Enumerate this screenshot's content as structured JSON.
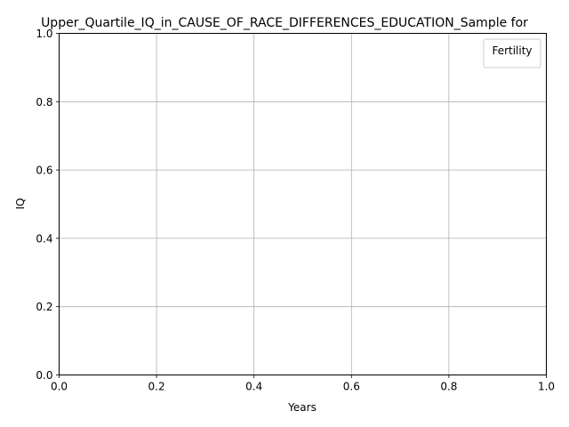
{
  "chart_data": {
    "type": "line",
    "title": "Upper_Quartile_IQ_in_CAUSE_OF_RACE_DIFFERENCES_EDUCATION_Sample for",
    "xlabel": "Years",
    "ylabel": "IQ",
    "xlim": [
      0.0,
      1.0
    ],
    "ylim": [
      0.0,
      1.0
    ],
    "x_ticks": [
      "0.0",
      "0.2",
      "0.4",
      "0.6",
      "0.8",
      "1.0"
    ],
    "y_ticks": [
      "0.0",
      "0.2",
      "0.4",
      "0.6",
      "0.8",
      "1.0"
    ],
    "grid": true,
    "legend": {
      "title": "Fertility",
      "location": "upper right",
      "entries": []
    },
    "series": []
  }
}
